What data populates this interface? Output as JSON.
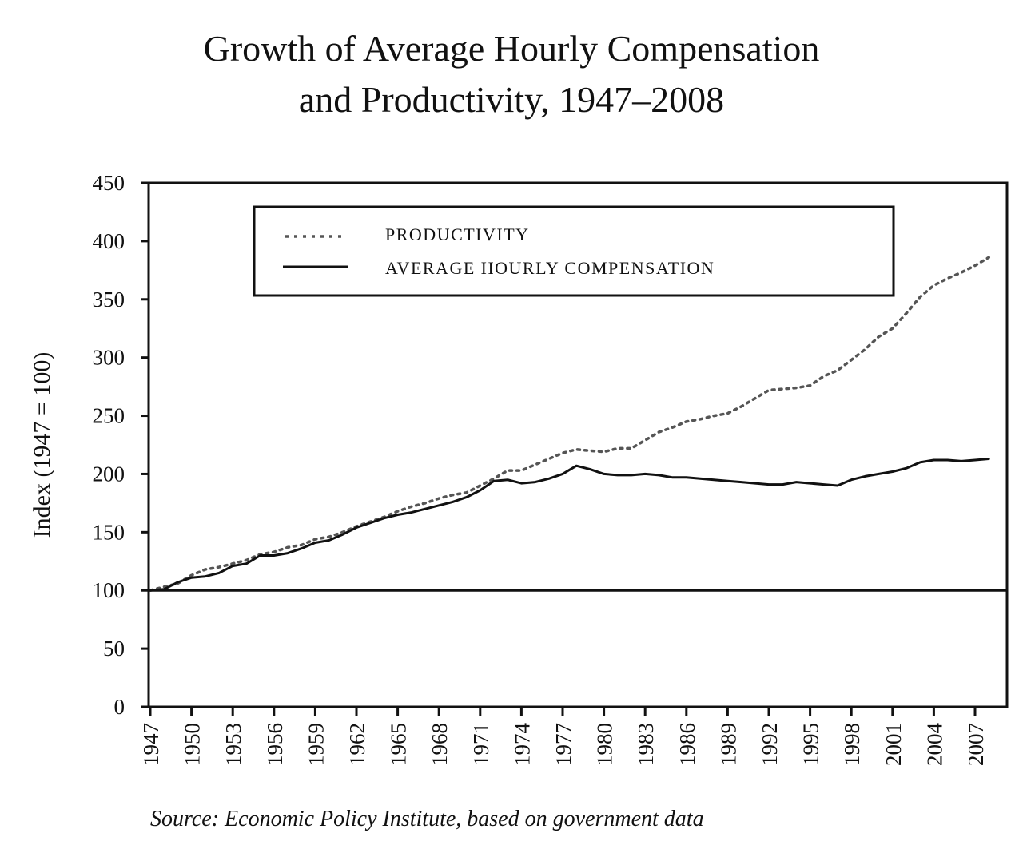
{
  "chart_data": {
    "type": "line",
    "title": "Growth of Average Hourly Compensation and Productivity, 1947–2008",
    "title_lines": [
      "Growth of Average Hourly Compensation",
      "and Productivity, 1947–2008"
    ],
    "xlabel": "",
    "ylabel": "Index (1947 = 100)",
    "ylim": [
      0,
      450
    ],
    "xlim": [
      1947,
      2008
    ],
    "y_ticks": [
      0,
      50,
      100,
      150,
      200,
      250,
      300,
      350,
      400,
      450
    ],
    "y_tick_labels": [
      "0",
      "50",
      "100",
      "150",
      "200",
      "250",
      "300",
      "350",
      "400",
      "450"
    ],
    "x_ticks": [
      1947,
      1950,
      1953,
      1956,
      1959,
      1962,
      1965,
      1968,
      1971,
      1974,
      1977,
      1980,
      1983,
      1986,
      1989,
      1992,
      1995,
      1998,
      2001,
      2004,
      2007
    ],
    "x_tick_labels": [
      "1947",
      "1950",
      "1953",
      "1956",
      "1959",
      "1962",
      "1965",
      "1968",
      "1971",
      "1974",
      "1977",
      "1980",
      "1983",
      "1986",
      "1989",
      "1992",
      "1995",
      "1998",
      "2001",
      "2004",
      "2007"
    ],
    "reference_line": 100,
    "grid": false,
    "legend_position": "top-left",
    "series": [
      {
        "name": "PRODUCTIVITY",
        "style": "dotted",
        "color": "#555555",
        "x": [
          1947,
          1948,
          1949,
          1950,
          1951,
          1952,
          1953,
          1954,
          1955,
          1956,
          1957,
          1958,
          1959,
          1960,
          1961,
          1962,
          1963,
          1964,
          1965,
          1966,
          1967,
          1968,
          1969,
          1970,
          1971,
          1972,
          1973,
          1974,
          1975,
          1976,
          1977,
          1978,
          1979,
          1980,
          1981,
          1982,
          1983,
          1984,
          1985,
          1986,
          1987,
          1988,
          1989,
          1990,
          1991,
          1992,
          1993,
          1994,
          1995,
          1996,
          1997,
          1998,
          1999,
          2000,
          2001,
          2002,
          2003,
          2004,
          2005,
          2006,
          2007,
          2008
        ],
        "values": [
          100,
          103,
          106,
          113,
          118,
          120,
          123,
          126,
          131,
          133,
          137,
          139,
          144,
          146,
          150,
          155,
          159,
          163,
          168,
          172,
          175,
          179,
          182,
          184,
          190,
          196,
          203,
          203,
          208,
          213,
          218,
          221,
          220,
          219,
          222,
          222,
          229,
          236,
          240,
          245,
          247,
          250,
          252,
          258,
          265,
          272,
          273,
          274,
          276,
          284,
          289,
          298,
          307,
          318,
          325,
          338,
          352,
          362,
          368,
          373,
          379,
          386
        ]
      },
      {
        "name": "AVERAGE HOURLY COMPENSATION",
        "style": "solid",
        "color": "#111111",
        "x": [
          1947,
          1948,
          1949,
          1950,
          1951,
          1952,
          1953,
          1954,
          1955,
          1956,
          1957,
          1958,
          1959,
          1960,
          1961,
          1962,
          1963,
          1964,
          1965,
          1966,
          1967,
          1968,
          1969,
          1970,
          1971,
          1972,
          1973,
          1974,
          1975,
          1976,
          1977,
          1978,
          1979,
          1980,
          1981,
          1982,
          1983,
          1984,
          1985,
          1986,
          1987,
          1988,
          1989,
          1990,
          1991,
          1992,
          1993,
          1994,
          1995,
          1996,
          1997,
          1998,
          1999,
          2000,
          2001,
          2002,
          2003,
          2004,
          2005,
          2006,
          2007,
          2008
        ],
        "values": [
          100,
          101,
          107,
          111,
          112,
          115,
          121,
          123,
          130,
          130,
          132,
          136,
          141,
          143,
          148,
          154,
          158,
          162,
          165,
          167,
          170,
          173,
          176,
          180,
          186,
          194,
          195,
          192,
          193,
          196,
          200,
          207,
          204,
          200,
          199,
          199,
          200,
          199,
          197,
          197,
          196,
          195,
          194,
          193,
          192,
          191,
          191,
          193,
          192,
          191,
          190,
          195,
          198,
          200,
          202,
          205,
          210,
          212,
          212,
          211,
          212,
          213
        ]
      }
    ],
    "source": "Source: Economic Policy Institute, based on government data"
  }
}
